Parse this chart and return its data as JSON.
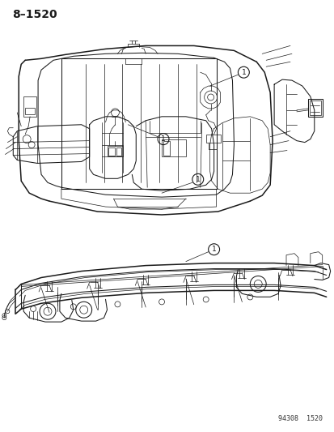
{
  "title_top_left": "8–1520",
  "footer_text": "94308  1520",
  "background_color": "#ffffff",
  "line_color": "#1a1a1a",
  "label_circle_1": "1",
  "fig_width": 4.14,
  "fig_height": 5.33,
  "dpi": 100
}
